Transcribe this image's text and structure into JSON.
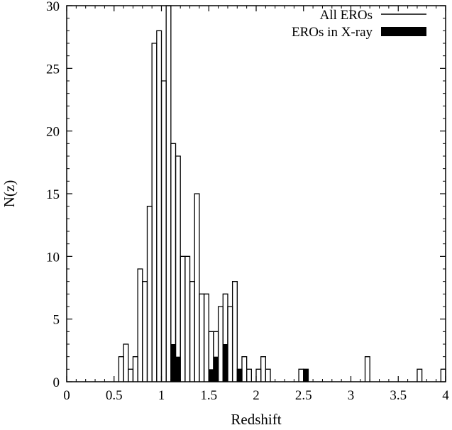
{
  "chart_data": {
    "type": "bar",
    "title": "",
    "xlabel": "Redshift",
    "ylabel": "N(z)",
    "xlim": [
      0,
      4
    ],
    "ylim": [
      0,
      30
    ],
    "bin_width": 0.05,
    "grid": false,
    "legend_position": "top-right",
    "x_ticks": [
      "0",
      "0.5",
      "1",
      "1.5",
      "2",
      "2.5",
      "3",
      "3.5",
      "4"
    ],
    "y_ticks": [
      "0",
      "5",
      "10",
      "15",
      "20",
      "25",
      "30"
    ],
    "series": [
      {
        "name": "All EROs",
        "style": "step-outline",
        "bins": [
          {
            "x": 0.55,
            "count": 2
          },
          {
            "x": 0.6,
            "count": 3
          },
          {
            "x": 0.65,
            "count": 1
          },
          {
            "x": 0.7,
            "count": 2
          },
          {
            "x": 0.75,
            "count": 9
          },
          {
            "x": 0.8,
            "count": 8
          },
          {
            "x": 0.85,
            "count": 14
          },
          {
            "x": 0.9,
            "count": 27
          },
          {
            "x": 0.95,
            "count": 28
          },
          {
            "x": 1.0,
            "count": 24
          },
          {
            "x": 1.05,
            "count": 30
          },
          {
            "x": 1.1,
            "count": 19
          },
          {
            "x": 1.15,
            "count": 18
          },
          {
            "x": 1.2,
            "count": 10
          },
          {
            "x": 1.25,
            "count": 10
          },
          {
            "x": 1.3,
            "count": 8
          },
          {
            "x": 1.35,
            "count": 15
          },
          {
            "x": 1.4,
            "count": 7
          },
          {
            "x": 1.45,
            "count": 7
          },
          {
            "x": 1.5,
            "count": 4
          },
          {
            "x": 1.55,
            "count": 4
          },
          {
            "x": 1.6,
            "count": 6
          },
          {
            "x": 1.65,
            "count": 7
          },
          {
            "x": 1.7,
            "count": 6
          },
          {
            "x": 1.75,
            "count": 8
          },
          {
            "x": 1.8,
            "count": 1
          },
          {
            "x": 1.85,
            "count": 2
          },
          {
            "x": 1.9,
            "count": 1
          },
          {
            "x": 1.95,
            "count": 0
          },
          {
            "x": 2.0,
            "count": 1
          },
          {
            "x": 2.05,
            "count": 2
          },
          {
            "x": 2.1,
            "count": 1
          },
          {
            "x": 2.45,
            "count": 1
          },
          {
            "x": 2.5,
            "count": 1
          },
          {
            "x": 3.15,
            "count": 2
          },
          {
            "x": 3.7,
            "count": 1
          },
          {
            "x": 3.95,
            "count": 1
          }
        ]
      },
      {
        "name": "EROs in X-ray",
        "style": "solid-fill",
        "bins": [
          {
            "x": 1.1,
            "count": 3
          },
          {
            "x": 1.15,
            "count": 2
          },
          {
            "x": 1.5,
            "count": 1
          },
          {
            "x": 1.55,
            "count": 2
          },
          {
            "x": 1.65,
            "count": 3
          },
          {
            "x": 1.8,
            "count": 1
          },
          {
            "x": 2.5,
            "count": 1
          }
        ]
      }
    ]
  }
}
